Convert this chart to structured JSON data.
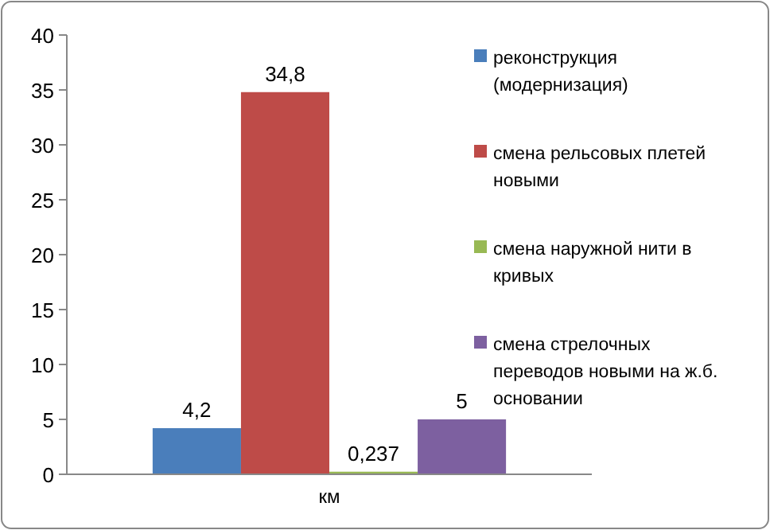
{
  "chart_data": {
    "type": "bar",
    "categories": [
      "км"
    ],
    "series": [
      {
        "name": "реконструкция (модернизация)",
        "color": "#4a7ebb",
        "values": [
          4.2
        ],
        "value_labels": [
          "4,2"
        ]
      },
      {
        "name": "смена рельсовых плетей новыми",
        "color": "#be4b48",
        "values": [
          34.8
        ],
        "value_labels": [
          "34,8"
        ]
      },
      {
        "name": "смена наружной нити в кривых",
        "color": "#98b954",
        "values": [
          0.237
        ],
        "value_labels": [
          "0,237"
        ]
      },
      {
        "name": "смена стрелочных переводов новыми на ж.б. основании",
        "color": "#7d60a0",
        "values": [
          5
        ],
        "value_labels": [
          "5"
        ]
      }
    ],
    "ylim": [
      0,
      40
    ],
    "yticks": [
      0,
      5,
      10,
      15,
      20,
      25,
      30,
      35,
      40
    ],
    "grid": false,
    "legend": "right"
  }
}
